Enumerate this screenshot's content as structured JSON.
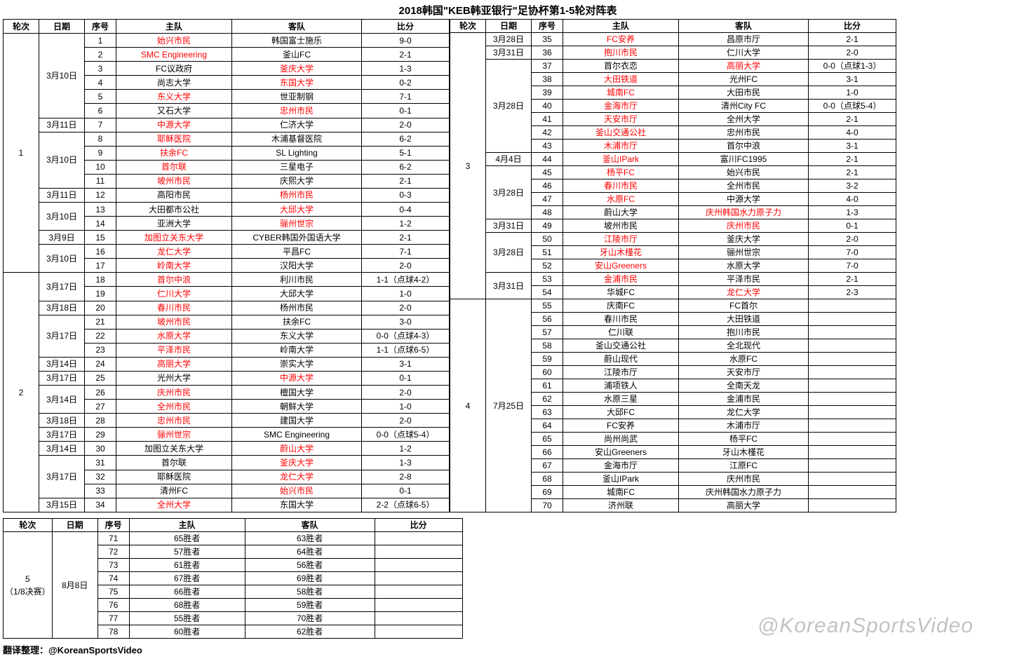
{
  "title": "2018韩国\"KEB韩亚银行\"足协杯第1-5轮对阵表",
  "headers": {
    "round": "轮次",
    "date": "日期",
    "num": "序号",
    "home": "主队",
    "away": "客队",
    "score": "比分"
  },
  "footer": "翻译整理：@KoreanSportsVideo",
  "watermark": "@KoreanSportsVideo",
  "round_labels": {
    "r1": "1",
    "r2": "2",
    "r3": "3",
    "r4": "4",
    "r5a": "5",
    "r5b": "（1/8决赛）"
  },
  "left": [
    {
      "r": "1",
      "d": "3月10日",
      "n": "1",
      "h": "始兴市民",
      "hr": true,
      "a": "韩国富士施乐",
      "s": "9-0"
    },
    {
      "r": "",
      "d": "",
      "n": "2",
      "h": "SMC Engineering",
      "hr": true,
      "a": "釜山FC",
      "s": "2-1"
    },
    {
      "r": "",
      "d": "",
      "n": "3",
      "h": "FC议政府",
      "a": "釜庆大学",
      "ar": true,
      "s": "1-3"
    },
    {
      "r": "",
      "d": "",
      "n": "4",
      "h": "尚志大学",
      "a": "东国大学",
      "ar": true,
      "s": "0-2"
    },
    {
      "r": "",
      "d": "",
      "n": "5",
      "h": "东义大学",
      "hr": true,
      "a": "世亚制钢",
      "s": "7-1"
    },
    {
      "r": "",
      "d": "",
      "n": "6",
      "h": "又石大学",
      "a": "忠州市民",
      "ar": true,
      "s": "0-1"
    },
    {
      "r": "",
      "d": "3月11日",
      "n": "7",
      "h": "中源大学",
      "hr": true,
      "a": "仁济大学",
      "s": "2-0"
    },
    {
      "r": "",
      "d": "3月10日",
      "n": "8",
      "h": "耶稣医院",
      "hr": true,
      "a": "木浦基督医院",
      "s": "6-2"
    },
    {
      "r": "",
      "d": "",
      "n": "9",
      "h": "扶余FC",
      "hr": true,
      "a": "SL Lighting",
      "s": "5-1"
    },
    {
      "r": "",
      "d": "",
      "n": "10",
      "h": "首尔联",
      "hr": true,
      "a": "三星电子",
      "s": "6-2"
    },
    {
      "r": "",
      "d": "",
      "n": "11",
      "h": "坡州市民",
      "hr": true,
      "a": "庆熙大学",
      "s": "2-1"
    },
    {
      "r": "",
      "d": "3月11日",
      "n": "12",
      "h": "高阳市民",
      "a": "杨州市民",
      "ar": true,
      "s": "0-3"
    },
    {
      "r": "",
      "d": "3月10日",
      "n": "13",
      "h": "大田都市公社",
      "a": "大邱大学",
      "ar": true,
      "s": "0-4"
    },
    {
      "r": "",
      "d": "",
      "n": "14",
      "h": "亚洲大学",
      "a": "骊州世宗",
      "ar": true,
      "s": "1-2"
    },
    {
      "r": "",
      "d": "3月9日",
      "n": "15",
      "h": "加图立关东大学",
      "hr": true,
      "a": "CYBER韩国外国语大学",
      "s": "2-1"
    },
    {
      "r": "",
      "d": "3月10日",
      "n": "16",
      "h": "龙仁大学",
      "hr": true,
      "a": "平昌FC",
      "s": "7-1"
    },
    {
      "r": "",
      "d": "",
      "n": "17",
      "h": "岭南大学",
      "hr": true,
      "a": "汉阳大学",
      "s": "2-0"
    },
    {
      "r": "2",
      "d": "3月17日",
      "n": "18",
      "h": "首尔中浪",
      "hr": true,
      "a": "利川市民",
      "s": "1-1（点球4-2）"
    },
    {
      "r": "",
      "d": "",
      "n": "19",
      "h": "仁川大学",
      "hr": true,
      "a": "大邱大学",
      "s": "1-0"
    },
    {
      "r": "",
      "d": "3月18日",
      "n": "20",
      "h": "春川市民",
      "hr": true,
      "a": "杨州市民",
      "s": "2-0"
    },
    {
      "r": "",
      "d": "3月17日",
      "n": "21",
      "h": "坡州市民",
      "hr": true,
      "a": "扶余FC",
      "s": "3-0"
    },
    {
      "r": "",
      "d": "",
      "n": "22",
      "h": "水原大学",
      "hr": true,
      "a": "东义大学",
      "s": "0-0（点球4-3）"
    },
    {
      "r": "",
      "d": "",
      "n": "23",
      "h": "平泽市民",
      "hr": true,
      "a": "岭南大学",
      "s": "1-1（点球6-5）"
    },
    {
      "r": "",
      "d": "3月14日",
      "n": "24",
      "h": "高丽大学",
      "hr": true,
      "a": "崇实大学",
      "s": "3-1"
    },
    {
      "r": "",
      "d": "3月17日",
      "n": "25",
      "h": "光州大学",
      "a": "中源大学",
      "ar": true,
      "s": "0-1"
    },
    {
      "r": "",
      "d": "3月14日",
      "n": "26",
      "h": "庆州市民",
      "hr": true,
      "a": "檀国大学",
      "s": "2-0"
    },
    {
      "r": "",
      "d": "",
      "n": "27",
      "h": "全州市民",
      "hr": true,
      "a": "朝鲜大学",
      "s": "1-0"
    },
    {
      "r": "",
      "d": "3月18日",
      "n": "28",
      "h": "忠州市民",
      "hr": true,
      "a": "建国大学",
      "s": "2-0"
    },
    {
      "r": "",
      "d": "3月17日",
      "n": "29",
      "h": "骊州世宗",
      "hr": true,
      "a": "SMC Engineering",
      "s": "0-0（点球5-4）"
    },
    {
      "r": "",
      "d": "3月14日",
      "n": "30",
      "h": "加图立关东大学",
      "a": "蔚山大学",
      "ar": true,
      "s": "1-2"
    },
    {
      "r": "",
      "d": "3月17日",
      "n": "31",
      "h": "首尔联",
      "a": "釜庆大学",
      "ar": true,
      "s": "1-3"
    },
    {
      "r": "",
      "d": "",
      "n": "32",
      "h": "耶稣医院",
      "a": "龙仁大学",
      "ar": true,
      "s": "2-8"
    },
    {
      "r": "",
      "d": "",
      "n": "33",
      "h": "清州FC",
      "a": "始兴市民",
      "ar": true,
      "s": "0-1"
    },
    {
      "r": "",
      "d": "3月15日",
      "n": "34",
      "h": "全州大学",
      "hr": true,
      "a": "东国大学",
      "s": "2-2（点球6-5）"
    }
  ],
  "right": [
    {
      "r": "3",
      "d": "3月28日",
      "n": "35",
      "h": "FC安养",
      "hr": true,
      "a": "昌原市厅",
      "s": "2-1"
    },
    {
      "r": "",
      "d": "3月31日",
      "n": "36",
      "h": "抱川市民",
      "hr": true,
      "a": "仁川大学",
      "s": "2-0"
    },
    {
      "r": "",
      "d": "3月28日",
      "n": "37",
      "h": "首尔衣恋",
      "a": "高丽大学",
      "ar": true,
      "s": "0-0（点球1-3）"
    },
    {
      "r": "",
      "d": "",
      "n": "38",
      "h": "大田铁道",
      "hr": true,
      "a": "光州FC",
      "s": "3-1"
    },
    {
      "r": "",
      "d": "",
      "n": "39",
      "h": "城南FC",
      "hr": true,
      "a": "大田市民",
      "s": "1-0"
    },
    {
      "r": "",
      "d": "",
      "n": "40",
      "h": "金海市厅",
      "hr": true,
      "a": "清州City FC",
      "s": "0-0（点球5-4）"
    },
    {
      "r": "",
      "d": "",
      "n": "41",
      "h": "天安市厅",
      "hr": true,
      "a": "全州大学",
      "s": "2-1"
    },
    {
      "r": "",
      "d": "",
      "n": "42",
      "h": "釜山交通公社",
      "hr": true,
      "a": "忠州市民",
      "s": "4-0"
    },
    {
      "r": "",
      "d": "",
      "n": "43",
      "h": "木浦市厅",
      "hr": true,
      "a": "首尔中浪",
      "s": "3-1"
    },
    {
      "r": "",
      "d": "4月4日",
      "n": "44",
      "h": "釜山IPark",
      "hr": true,
      "a": "富川FC1995",
      "s": "2-1"
    },
    {
      "r": "",
      "d": "3月28日",
      "n": "45",
      "h": "杨平FC",
      "hr": true,
      "a": "始兴市民",
      "s": "2-1"
    },
    {
      "r": "",
      "d": "",
      "n": "46",
      "h": "春川市民",
      "hr": true,
      "a": "全州市民",
      "s": "3-2"
    },
    {
      "r": "",
      "d": "",
      "n": "47",
      "h": "水原FC",
      "hr": true,
      "a": "中源大学",
      "s": "4-0"
    },
    {
      "r": "",
      "d": "",
      "n": "48",
      "h": "蔚山大学",
      "a": "庆州韩国水力原子力",
      "ar": true,
      "s": "1-3"
    },
    {
      "r": "",
      "d": "3月31日",
      "n": "49",
      "h": "坡州市民",
      "a": "庆州市民",
      "ar": true,
      "s": "0-1"
    },
    {
      "r": "",
      "d": "3月28日",
      "n": "50",
      "h": "江陵市厅",
      "hr": true,
      "a": "釜庆大学",
      "s": "2-0"
    },
    {
      "r": "",
      "d": "",
      "n": "51",
      "h": "牙山木槿花",
      "hr": true,
      "a": "骊州世宗",
      "s": "7-0"
    },
    {
      "r": "",
      "d": "",
      "n": "52",
      "h": "安山Greeners",
      "hr": true,
      "a": "水原大学",
      "s": "7-0"
    },
    {
      "r": "",
      "d": "3月31日",
      "n": "53",
      "h": "金浦市民",
      "hr": true,
      "a": "平泽市民",
      "s": "2-1"
    },
    {
      "r": "",
      "d": "",
      "n": "54",
      "h": "华城FC",
      "a": "龙仁大学",
      "ar": true,
      "s": "2-3"
    },
    {
      "r": "4",
      "d": "7月25日",
      "n": "55",
      "h": "庆南FC",
      "a": "FC首尔",
      "s": ""
    },
    {
      "r": "",
      "d": "",
      "n": "56",
      "h": "春川市民",
      "a": "大田铁道",
      "s": ""
    },
    {
      "r": "",
      "d": "",
      "n": "57",
      "h": "仁川联",
      "a": "抱川市民",
      "s": ""
    },
    {
      "r": "",
      "d": "",
      "n": "58",
      "h": "釜山交通公社",
      "a": "全北现代",
      "s": ""
    },
    {
      "r": "",
      "d": "",
      "n": "59",
      "h": "蔚山现代",
      "a": "水原FC",
      "s": ""
    },
    {
      "r": "",
      "d": "",
      "n": "60",
      "h": "江陵市厅",
      "a": "天安市厅",
      "s": ""
    },
    {
      "r": "",
      "d": "",
      "n": "61",
      "h": "浦项铁人",
      "a": "全南天龙",
      "s": ""
    },
    {
      "r": "",
      "d": "",
      "n": "62",
      "h": "水原三星",
      "a": "金浦市民",
      "s": ""
    },
    {
      "r": "",
      "d": "",
      "n": "63",
      "h": "大邱FC",
      "a": "龙仁大学",
      "s": ""
    },
    {
      "r": "",
      "d": "",
      "n": "64",
      "h": "FC安养",
      "a": "木浦市厅",
      "s": ""
    },
    {
      "r": "",
      "d": "",
      "n": "65",
      "h": "尚州尚武",
      "a": "杨平FC",
      "s": ""
    },
    {
      "r": "",
      "d": "",
      "n": "66",
      "h": "安山Greeners",
      "a": "牙山木槿花",
      "s": ""
    },
    {
      "r": "",
      "d": "",
      "n": "67",
      "h": "金海市厅",
      "a": "江原FC",
      "s": ""
    },
    {
      "r": "",
      "d": "",
      "n": "68",
      "h": "釜山IPark",
      "a": "庆州市民",
      "s": ""
    },
    {
      "r": "",
      "d": "",
      "n": "69",
      "h": "城南FC",
      "a": "庆州韩国水力原子力",
      "s": ""
    },
    {
      "r": "",
      "d": "",
      "n": "70",
      "h": "济州联",
      "a": "高丽大学",
      "s": ""
    }
  ],
  "left_spans": {
    "round": [
      {
        "row": 0,
        "span": 17
      },
      {
        "row": 17,
        "span": 17
      }
    ],
    "date": [
      {
        "row": 0,
        "span": 6
      },
      {
        "row": 6,
        "span": 1
      },
      {
        "row": 7,
        "span": 4
      },
      {
        "row": 11,
        "span": 1
      },
      {
        "row": 12,
        "span": 2
      },
      {
        "row": 14,
        "span": 1
      },
      {
        "row": 15,
        "span": 2
      },
      {
        "row": 17,
        "span": 2
      },
      {
        "row": 19,
        "span": 1
      },
      {
        "row": 20,
        "span": 3
      },
      {
        "row": 23,
        "span": 1
      },
      {
        "row": 24,
        "span": 1
      },
      {
        "row": 25,
        "span": 2
      },
      {
        "row": 27,
        "span": 1
      },
      {
        "row": 28,
        "span": 1
      },
      {
        "row": 29,
        "span": 1
      },
      {
        "row": 30,
        "span": 3
      },
      {
        "row": 33,
        "span": 1
      }
    ]
  },
  "right_spans": {
    "round": [
      {
        "row": 0,
        "span": 20
      },
      {
        "row": 20,
        "span": 16
      }
    ],
    "date": [
      {
        "row": 0,
        "span": 1
      },
      {
        "row": 1,
        "span": 1
      },
      {
        "row": 2,
        "span": 7
      },
      {
        "row": 9,
        "span": 1
      },
      {
        "row": 10,
        "span": 4
      },
      {
        "row": 14,
        "span": 1
      },
      {
        "row": 15,
        "span": 3
      },
      {
        "row": 18,
        "span": 2
      },
      {
        "row": 20,
        "span": 16
      }
    ]
  },
  "bottom": [
    {
      "n": "71",
      "h": "65胜者",
      "a": "63胜者"
    },
    {
      "n": "72",
      "h": "57胜者",
      "a": "64胜者"
    },
    {
      "n": "73",
      "h": "61胜者",
      "a": "56胜者"
    },
    {
      "n": "74",
      "h": "67胜者",
      "a": "69胜者"
    },
    {
      "n": "75",
      "h": "66胜者",
      "a": "58胜者"
    },
    {
      "n": "76",
      "h": "68胜者",
      "a": "59胜者"
    },
    {
      "n": "77",
      "h": "55胜者",
      "a": "70胜者"
    },
    {
      "n": "78",
      "h": "60胜者",
      "a": "62胜者"
    }
  ],
  "bottom_date": "8月8日"
}
